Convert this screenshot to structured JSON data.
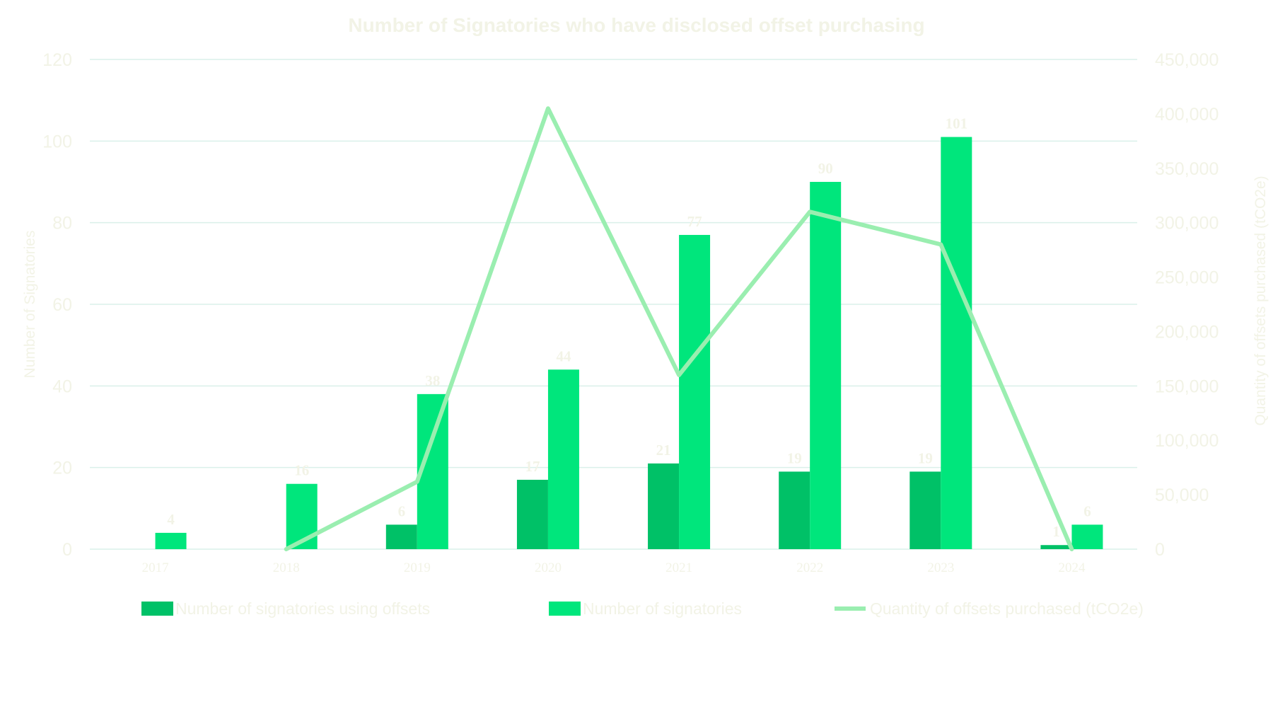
{
  "chart_data": {
    "type": "bar",
    "title": "Number of Signatories who have disclosed offset purchasing",
    "categories": [
      "2017",
      "2018",
      "2019",
      "2020",
      "2021",
      "2022",
      "2023",
      "2024"
    ],
    "ylabel": "Number of Signatories",
    "y2label": "Quantity of offsets purchased (tCO2e)",
    "ylim": [
      0,
      120
    ],
    "yticks": [
      "0",
      "20",
      "40",
      "60",
      "80",
      "100",
      "120"
    ],
    "y2lim": [
      0,
      450000
    ],
    "y2ticks": [
      "0",
      "50,000",
      "100,000",
      "150,000",
      "200,000",
      "250,000",
      "300,000",
      "350,000",
      "400,000",
      "450,000"
    ],
    "grid": true,
    "legend_position": "bottom",
    "series": [
      {
        "name": "Number of signatories using offsets",
        "type": "bar",
        "axis": "left",
        "color": "#00c167",
        "values": [
          null,
          null,
          6,
          17,
          21,
          19,
          19,
          1
        ]
      },
      {
        "name": "Number of signatories",
        "type": "bar",
        "axis": "left",
        "color": "#00e67c",
        "values": [
          4,
          16,
          38,
          44,
          77,
          90,
          101,
          6
        ]
      },
      {
        "name": "Quantity of offsets purchased (tCO2e)",
        "type": "line",
        "axis": "right",
        "color": "#9aeeb0",
        "values": [
          null,
          0,
          62000,
          405000,
          160000,
          310000,
          280000,
          0
        ]
      }
    ]
  }
}
